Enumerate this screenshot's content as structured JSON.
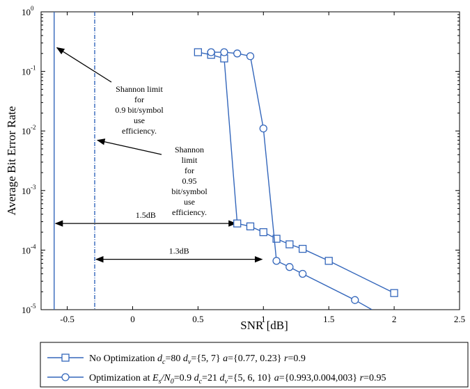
{
  "chart_data": {
    "type": "line",
    "xlabel": "SNR [dB]",
    "ylabel": "Average Bit Error Rate",
    "xlim": [
      -0.7,
      2.5
    ],
    "ylim": [
      1e-05,
      1
    ],
    "yscale": "log",
    "x_ticks": [
      "-0.5",
      "0",
      "0.5",
      "1",
      "1.5",
      "2",
      "2.5"
    ],
    "y_ticks": [
      {
        "base": "10",
        "exp": "0"
      },
      {
        "base": "10",
        "exp": "-1"
      },
      {
        "base": "10",
        "exp": "-2"
      },
      {
        "base": "10",
        "exp": "-3"
      },
      {
        "base": "10",
        "exp": "-4"
      },
      {
        "base": "10",
        "exp": "-5"
      }
    ],
    "grid": false,
    "legend_position": "bottom",
    "series": [
      {
        "name": "No Optimization d_c=80 d_v={5, 7} a={0.77, 0.23} r=0.9",
        "marker": "square",
        "color": "#3366bb",
        "x": [
          0.5,
          0.6,
          0.7,
          0.8,
          0.9,
          1.0,
          1.1,
          1.2,
          1.3,
          1.5,
          2.0
        ],
        "y": [
          0.21,
          0.19,
          0.165,
          0.00028,
          0.00025,
          0.0002,
          0.000155,
          0.000125,
          0.000105,
          6.6e-05,
          1.9e-05
        ]
      },
      {
        "name": "Optimization at Es/N0=0.9 d_c=21 d_v={5, 6, 10} a={0.993,0.004,003} r=0.95",
        "marker": "circle",
        "color": "#3366bb",
        "x": [
          0.6,
          0.7,
          0.8,
          0.9,
          1.0,
          1.1,
          1.2,
          1.3,
          1.7,
          1.83
        ],
        "y": [
          0.21,
          0.21,
          0.2,
          0.18,
          0.011,
          6.6e-05,
          5.2e-05,
          4e-05,
          1.45e-05,
          1e-05
        ]
      }
    ],
    "shannon_limits": [
      {
        "x": -0.6,
        "style": "solid",
        "color": "#3366bb"
      },
      {
        "x": -0.29,
        "style": "dashdot",
        "color": "#3366bb"
      }
    ],
    "annotations": [
      {
        "lines": [
          "Shannon limit",
          "for",
          "0.9 bit/symbol",
          "use",
          "efficiency."
        ],
        "arrow_to": [
          -0.6,
          0.25
        ]
      },
      {
        "lines": [
          "Shannon",
          "limit",
          "for",
          "0.95",
          "bit/symbol",
          "use",
          "efficiency."
        ],
        "arrow_to": [
          -0.29,
          0.007
        ]
      },
      {
        "text": "1.5dB",
        "from_x": -0.6,
        "to_x": 0.8,
        "y": 0.00028
      },
      {
        "text": "1.3dB",
        "from_x": -0.29,
        "to_x": 1.0,
        "y": 7e-05
      }
    ]
  },
  "legend": [
    {
      "parts": [
        {
          "t": "No Optimization ",
          "i": false
        },
        {
          "t": "d",
          "i": true
        },
        {
          "t": "c",
          "sub": true
        },
        {
          "t": "=80 ",
          "i": false
        },
        {
          "t": "d",
          "i": true
        },
        {
          "t": "v",
          "sub": true
        },
        {
          "t": "={5, 7} ",
          "i": false
        },
        {
          "t": "a",
          "i": true
        },
        {
          "t": "={0.77, 0.23} ",
          "i": false
        },
        {
          "t": "r",
          "i": true
        },
        {
          "t": "=0.9",
          "i": false
        }
      ]
    },
    {
      "parts": [
        {
          "t": "Optimization at ",
          "i": false
        },
        {
          "t": "E",
          "i": true
        },
        {
          "t": "s",
          "sub": true
        },
        {
          "t": "/",
          "i": true
        },
        {
          "t": "N",
          "i": true
        },
        {
          "t": "0",
          "sub": true
        },
        {
          "t": "=0.9 ",
          "i": false
        },
        {
          "t": "d",
          "i": true
        },
        {
          "t": "c",
          "sub": true
        },
        {
          "t": "=21 ",
          "i": false
        },
        {
          "t": "d",
          "i": true
        },
        {
          "t": "v",
          "sub": true
        },
        {
          "t": "={5, 6, 10} ",
          "i": false
        },
        {
          "t": "a",
          "i": true
        },
        {
          "t": "={0.993,0.004,003} ",
          "i": false
        },
        {
          "t": "r",
          "i": true
        },
        {
          "t": "=0.95",
          "i": false
        }
      ]
    }
  ]
}
